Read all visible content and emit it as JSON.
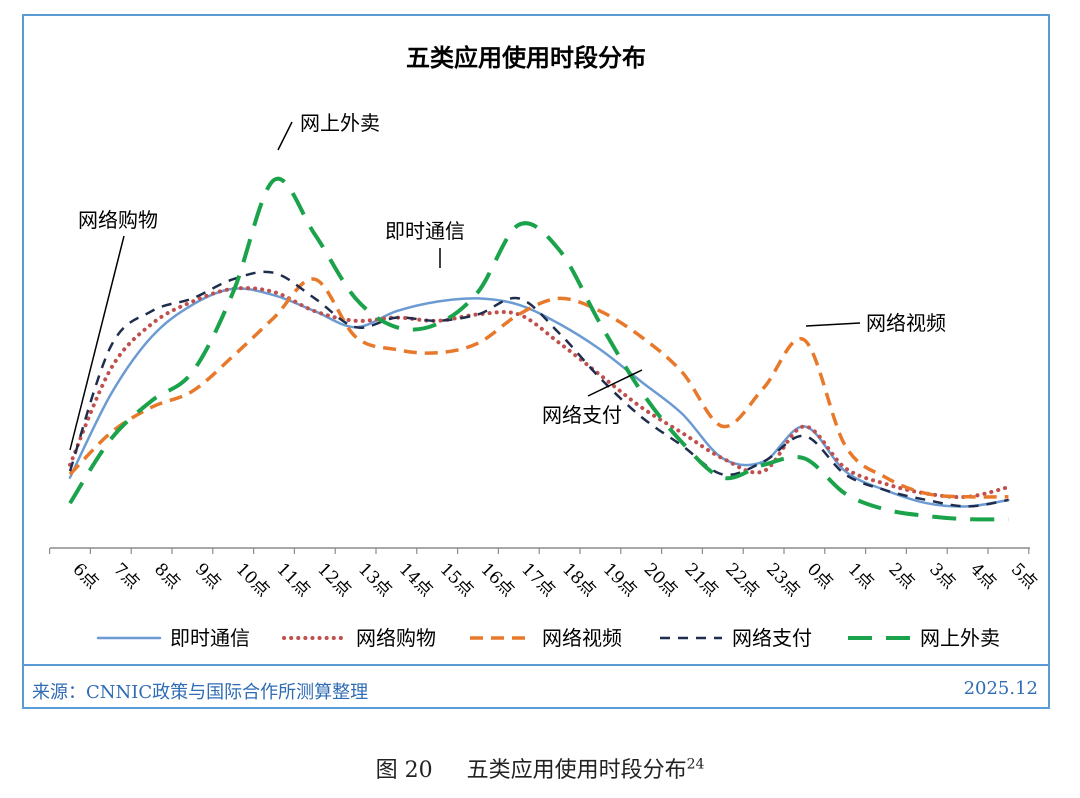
{
  "chart_data": {
    "type": "line",
    "title": "五类应用使用时段分布",
    "xlabel": "",
    "ylabel": "",
    "y_axis_visible": false,
    "grid": false,
    "legend_position": "bottom",
    "categories": [
      "6点",
      "7点",
      "8点",
      "9点",
      "10点",
      "11点",
      "12点",
      "13点",
      "14点",
      "15点",
      "16点",
      "17点",
      "18点",
      "19点",
      "20点",
      "21点",
      "22点",
      "23点",
      "0点",
      "1点",
      "2点",
      "3点",
      "4点",
      "5点"
    ],
    "series": [
      {
        "name": "即时通信",
        "color": "#6b9bd2",
        "dash": "solid",
        "values": [
          22,
          48,
          66,
          76,
          81,
          79,
          74,
          69,
          74,
          77,
          78,
          76,
          70,
          62,
          52,
          42,
          28,
          27,
          38,
          24,
          18,
          14,
          13,
          15
        ]
      },
      {
        "name": "网络购物",
        "color": "#c0504d",
        "dash": "dot",
        "values": [
          26,
          56,
          70,
          77,
          81,
          80,
          74,
          71,
          72,
          71,
          73,
          73,
          64,
          54,
          44,
          36,
          28,
          24,
          38,
          25,
          20,
          17,
          16,
          19
        ]
      },
      {
        "name": "网络视频",
        "color": "#e8782a",
        "dash": "dash",
        "values": [
          23,
          36,
          44,
          49,
          60,
          72,
          84,
          66,
          62,
          61,
          64,
          73,
          78,
          74,
          66,
          55,
          38,
          50,
          65,
          32,
          22,
          17,
          16,
          16
        ]
      },
      {
        "name": "网络支付",
        "color": "#1f2d4e",
        "dash": "dash-short",
        "values": [
          24,
          63,
          74,
          78,
          84,
          86,
          78,
          69,
          72,
          71,
          73,
          78,
          67,
          53,
          41,
          32,
          23,
          27,
          35,
          23,
          18,
          15,
          13,
          15
        ]
      },
      {
        "name": "网上外卖",
        "color": "#1aa34a",
        "dash": "dash-long",
        "values": [
          14,
          34,
          46,
          55,
          80,
          115,
          98,
          78,
          69,
          70,
          80,
          101,
          93,
          70,
          49,
          33,
          22,
          26,
          28,
          17,
          12,
          10,
          9,
          9
        ]
      }
    ],
    "ylim": [
      0,
      125
    ],
    "annotations": [
      {
        "text": "网上外卖",
        "series": "网上外卖"
      },
      {
        "text": "网络购物",
        "series": "网络购物"
      },
      {
        "text": "即时通信",
        "series": "即时通信"
      },
      {
        "text": "网络视频",
        "series": "网络视频"
      },
      {
        "text": "网络支付",
        "series": "网络支付"
      }
    ]
  },
  "footer": {
    "source": "来源：CNNIC政策与国际合作所测算整理",
    "date": "2025.12"
  },
  "caption": {
    "figure_label": "图 20",
    "title": "五类应用使用时段分布",
    "footnote": "24"
  }
}
